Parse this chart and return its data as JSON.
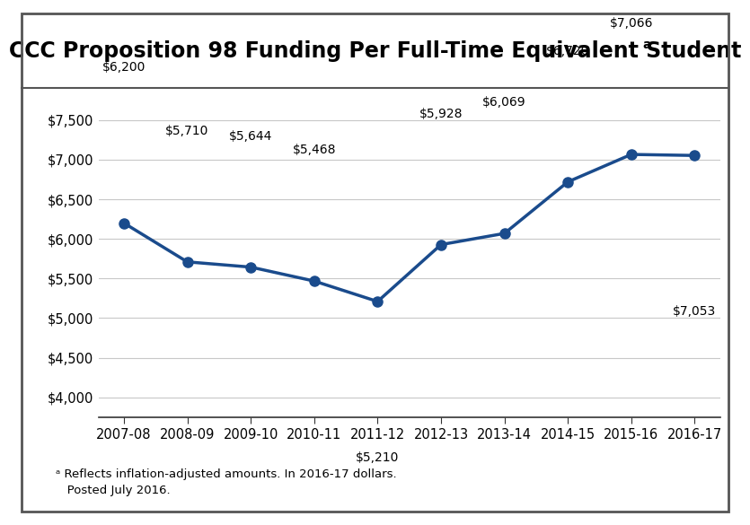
{
  "title": "CCC Proposition 98 Funding Per Full-Time Equivalent Student",
  "title_superscript": "a",
  "years": [
    "2007-08",
    "2008-09",
    "2009-10",
    "2010-11",
    "2011-12",
    "2012-13",
    "2013-14",
    "2014-15",
    "2015-16",
    "2016-17"
  ],
  "values": [
    6200,
    5710,
    5644,
    5468,
    5210,
    5928,
    6069,
    6720,
    7066,
    7053
  ],
  "labels": [
    "$6,200",
    "$5,710",
    "$5,644",
    "$5,468",
    "$5,210",
    "$5,928",
    "$6,069",
    "$6,720",
    "$7,066",
    "$7,053"
  ],
  "label_offsets_y": [
    120,
    100,
    100,
    100,
    -120,
    100,
    100,
    100,
    100,
    -120
  ],
  "line_color": "#1a4b8c",
  "marker_color": "#1a4b8c",
  "background_color": "#ffffff",
  "plot_bg_color": "#ffffff",
  "grid_color": "#c8c8c8",
  "ylim": [
    3750,
    7750
  ],
  "yticks": [
    4000,
    4500,
    5000,
    5500,
    6000,
    6500,
    7000,
    7500
  ],
  "ytick_labels": [
    "$4,000",
    "$4,500",
    "$5,000",
    "$5,500",
    "$6,000",
    "$6,500",
    "$7,000",
    "$7,500"
  ],
  "footnote_line1": "ᵃ Reflects inflation-adjusted amounts. In 2016-17 dollars.",
  "footnote_line2": "   Posted July 2016.",
  "title_fontsize": 17,
  "axis_fontsize": 10.5,
  "label_fontsize": 10,
  "footnote_fontsize": 9.5,
  "border_color": "#555555"
}
